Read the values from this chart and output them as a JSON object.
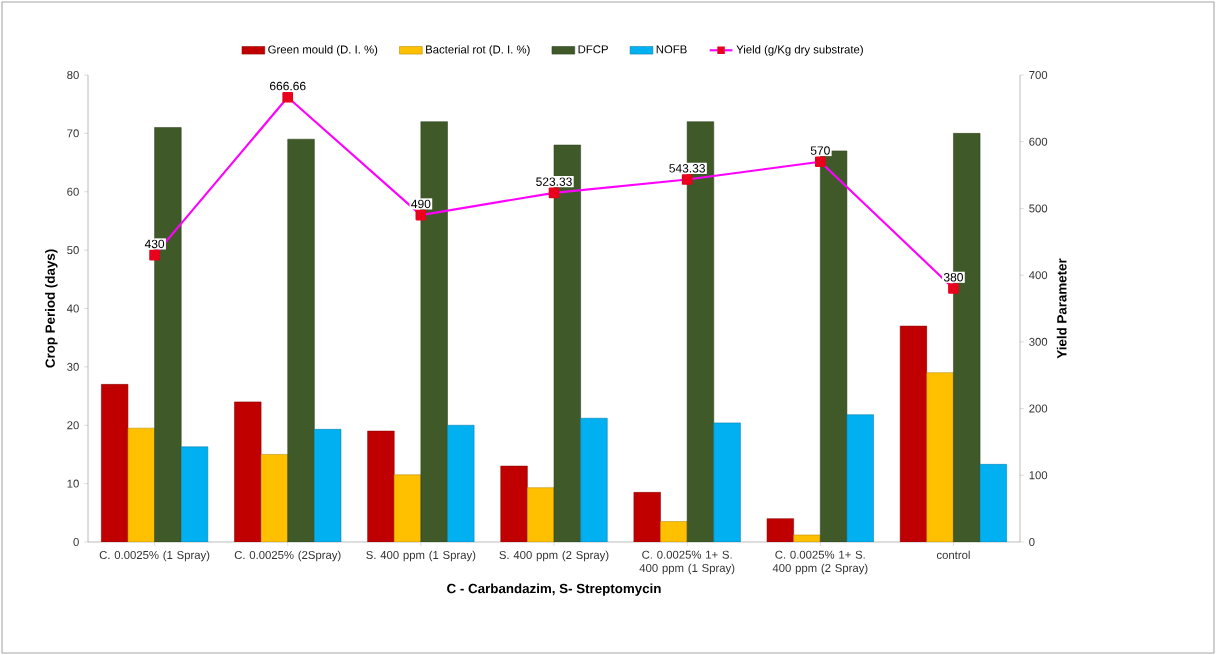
{
  "chart_data": {
    "type": "bar",
    "categories": [
      "C. 0.0025% (1 Spray)",
      "C. 0.0025% (2Spray)",
      "S. 400 ppm (1 Spray)",
      "S. 400 ppm (2 Spray)",
      "C. 0.0025% 1+ S. 400 ppm (1 Spray)",
      "C. 0.0025% 1+ S. 400 ppm (2 Spray)",
      "control"
    ],
    "series": [
      {
        "name": "Green mould (D. I. %)",
        "color": "#c00000",
        "values": [
          27,
          24,
          19,
          13,
          8.5,
          4,
          37
        ]
      },
      {
        "name": "Bacterial rot (D. I. %)",
        "color": "#ffc000",
        "values": [
          19.5,
          15,
          11.5,
          9.3,
          3.5,
          1.2,
          29
        ]
      },
      {
        "name": "DFCP",
        "color": "#3f5a28",
        "values": [
          71,
          69,
          72,
          68,
          72,
          67,
          70
        ]
      },
      {
        "name": "NOFB",
        "color": "#00b0f0",
        "values": [
          16.3,
          19.3,
          20,
          21.2,
          20.4,
          21.8,
          13.3
        ]
      },
      {
        "name": "Yield (g/Kg dry substrate)",
        "color": "#ff00ff",
        "type": "line",
        "axis": "y2",
        "marker": "square",
        "values": [
          430,
          666.66,
          490,
          523.33,
          543.33,
          570,
          380
        ],
        "value_labels": [
          "430",
          "666.66",
          "490",
          "523.33",
          "543.33",
          "570",
          "380"
        ]
      }
    ],
    "xlabel": "C - Carbandazim, S- Streptomycin",
    "ylabel": "Crop Period (days)",
    "y2label": "Yield Parameter",
    "ylim": [
      0,
      80
    ],
    "yticks": [
      0,
      10,
      20,
      30,
      40,
      50,
      60,
      70,
      80
    ],
    "y2lim": [
      0,
      700
    ],
    "y2ticks": [
      0,
      100,
      200,
      300,
      400,
      500,
      600,
      700
    ],
    "legend": "top",
    "grid": false
  }
}
